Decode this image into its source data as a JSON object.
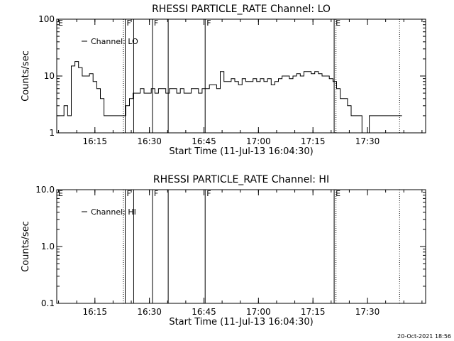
{
  "footer": {
    "timestamp": "20-Oct-2021 18:56"
  },
  "chart_data": [
    {
      "type": "line",
      "title": "RHESSI PARTICLE_RATE Channel: LO",
      "xlabel": "Start Time (11-Jul-13 16:04:30)",
      "ylabel": "Counts/sec",
      "yscale": "log",
      "ylim": [
        1,
        100
      ],
      "xlim": [
        "16:04:30",
        "17:46:00"
      ],
      "x_ticks": [
        "16:15",
        "16:30",
        "16:45",
        "17:00",
        "17:15",
        "17:30"
      ],
      "y_ticks": [
        "1",
        "10",
        "100"
      ],
      "legend": {
        "position": "top-left",
        "entries": [
          "Channel: LO"
        ]
      },
      "markers": [
        {
          "label": "E",
          "time": "16:04:30",
          "style": "dotted"
        },
        {
          "label": "",
          "time": "16:22:50",
          "style": "dotted"
        },
        {
          "label": "F",
          "time": "16:23:20",
          "style": "solid"
        },
        {
          "label": "",
          "time": "16:25:40",
          "style": "solid"
        },
        {
          "label": "F",
          "time": "16:30:50",
          "style": "solid"
        },
        {
          "label": "",
          "time": "16:35:10",
          "style": "solid"
        },
        {
          "label": "F",
          "time": "16:45:20",
          "style": "solid"
        },
        {
          "label": "E",
          "time": "17:20:50",
          "style": "solid"
        },
        {
          "label": "",
          "time": "17:21:20",
          "style": "dotted"
        },
        {
          "label": "",
          "time": "17:38:50",
          "style": "dotted"
        }
      ],
      "series": [
        {
          "name": "Channel: LO",
          "x": [
            "16:05:00",
            "16:06:00",
            "16:07:00",
            "16:08:00",
            "16:09:00",
            "16:10:00",
            "16:11:00",
            "16:12:00",
            "16:13:00",
            "16:14:00",
            "16:15:00",
            "16:16:00",
            "16:17:00",
            "16:18:00",
            "16:19:00",
            "16:20:00",
            "16:21:00",
            "16:22:00",
            "16:23:00",
            "16:24:00",
            "16:25:00",
            "16:26:00",
            "16:27:00",
            "16:28:00",
            "16:29:00",
            "16:30:00",
            "16:31:00",
            "16:32:00",
            "16:33:00",
            "16:34:00",
            "16:35:00",
            "16:36:00",
            "16:37:00",
            "16:38:00",
            "16:39:00",
            "16:40:00",
            "16:41:00",
            "16:42:00",
            "16:43:00",
            "16:44:00",
            "16:45:00",
            "16:46:00",
            "16:47:00",
            "16:48:00",
            "16:49:00",
            "16:50:00",
            "16:51:00",
            "16:52:00",
            "16:53:00",
            "16:54:00",
            "16:55:00",
            "16:56:00",
            "16:57:00",
            "16:58:00",
            "16:59:00",
            "17:00:00",
            "17:01:00",
            "17:02:00",
            "17:03:00",
            "17:04:00",
            "17:05:00",
            "17:06:00",
            "17:07:00",
            "17:08:00",
            "17:09:00",
            "17:10:00",
            "17:11:00",
            "17:12:00",
            "17:13:00",
            "17:14:00",
            "17:15:00",
            "17:16:00",
            "17:17:00",
            "17:18:00",
            "17:19:00",
            "17:20:00",
            "17:21:00",
            "17:22:00",
            "17:23:00",
            "17:24:00",
            "17:25:00",
            "17:26:00",
            "17:27:00",
            "17:28:00",
            "17:29:00",
            "17:30:00",
            "17:31:00",
            "17:32:00",
            "17:33:00",
            "17:34:00",
            "17:35:00",
            "17:36:00",
            "17:37:00",
            "17:38:00",
            "17:39:00"
          ],
          "values": [
            2,
            2,
            3,
            2,
            15,
            18,
            14,
            10,
            10,
            11,
            8,
            6,
            4,
            2,
            2,
            2,
            2,
            2,
            2,
            3,
            4,
            5,
            5,
            6,
            5,
            5,
            6,
            5,
            6,
            6,
            5,
            6,
            6,
            5,
            6,
            5,
            5,
            6,
            6,
            5,
            6,
            6,
            7,
            7,
            6,
            12,
            8,
            8,
            9,
            8,
            7,
            9,
            8,
            8,
            9,
            8,
            9,
            8,
            9,
            7,
            8,
            9,
            10,
            10,
            9,
            10,
            11,
            10,
            12,
            12,
            11,
            12,
            11,
            10,
            10,
            9,
            8,
            6,
            4,
            4,
            3,
            2,
            2,
            2,
            1,
            1,
            2,
            2,
            2,
            2,
            2,
            2,
            2,
            2,
            2
          ]
        }
      ]
    },
    {
      "type": "line",
      "title": "RHESSI PARTICLE_RATE Channel: HI",
      "xlabel": "Start Time (11-Jul-13 16:04:30)",
      "ylabel": "Counts/sec",
      "yscale": "log",
      "ylim": [
        0.1,
        10
      ],
      "xlim": [
        "16:04:30",
        "17:46:00"
      ],
      "x_ticks": [
        "16:15",
        "16:30",
        "16:45",
        "17:00",
        "17:15",
        "17:30"
      ],
      "y_ticks": [
        "0.1",
        "1.0",
        "10.0"
      ],
      "legend": {
        "position": "top-left",
        "entries": [
          "Channel: HI"
        ]
      },
      "markers": [
        {
          "label": "E",
          "time": "16:04:30",
          "style": "dotted"
        },
        {
          "label": "",
          "time": "16:22:50",
          "style": "dotted"
        },
        {
          "label": "F",
          "time": "16:23:20",
          "style": "solid"
        },
        {
          "label": "",
          "time": "16:25:40",
          "style": "solid"
        },
        {
          "label": "F",
          "time": "16:30:50",
          "style": "solid"
        },
        {
          "label": "",
          "time": "16:35:10",
          "style": "solid"
        },
        {
          "label": "F",
          "time": "16:45:20",
          "style": "solid"
        },
        {
          "label": "E",
          "time": "17:20:50",
          "style": "solid"
        },
        {
          "label": "",
          "time": "17:21:20",
          "style": "dotted"
        },
        {
          "label": "",
          "time": "17:38:50",
          "style": "dotted"
        }
      ],
      "series": [
        {
          "name": "Channel: HI",
          "x": [],
          "values": []
        }
      ]
    }
  ]
}
